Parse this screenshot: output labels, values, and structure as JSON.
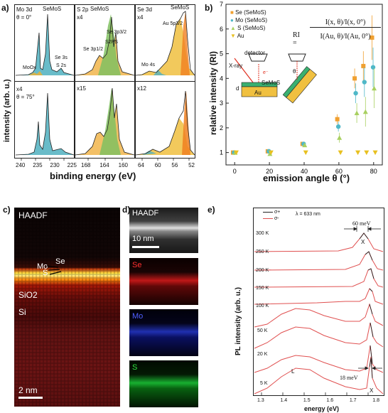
{
  "panels": {
    "a": {
      "label": "a)",
      "ylabel": "intensity (arb. u.)",
      "xlabel": "binding energy (eV)",
      "top_left": [
        "Mo 3d",
        "θ = 0°"
      ],
      "top_mid": [
        "S 2p",
        "x4"
      ],
      "top_right": [
        "Se 3d",
        "x4"
      ],
      "bottom_left": [
        "x4",
        "θ = 75°"
      ],
      "bottom_mid": "x15",
      "bottom_right": "x12",
      "annotations": {
        "sem1": "SeMoS",
        "sem2": "SeMoS",
        "sem3": "SeMoS",
        "moox": "MoOx",
        "se3s": "Se 3s",
        "s2s": "S 2s",
        "se3p32": "Se 3p3/2",
        "s2ps": "S2PS",
        "se3p12": "Se 3p1/2",
        "au5p": "Au 5p3/2",
        "mo4s": "Mo 4s"
      },
      "xticks1": [
        "240",
        "235",
        "230",
        "225"
      ],
      "xticks2": [
        "168",
        "164",
        "160"
      ],
      "xticks3": [
        "64",
        "60",
        "56",
        "52"
      ]
    },
    "b": {
      "label": "b)",
      "ylabel": "relative intensity (RI)",
      "xlabel": "emission angle θ (°)",
      "legend": [
        "Se (SeMoS)",
        "Mo (SeMoS)",
        "S (SeMoS)",
        "Au"
      ],
      "eq_lhs": "RI =",
      "eq_top_num": "I(x, θ)",
      "eq_top_den": "I(x, 0°)",
      "eq_bot_num": "I(Au, θ)",
      "eq_bot_den": "I(Au, 0°)",
      "inset": {
        "detector": "detector",
        "xray": "X-ray",
        "e": "e⁻",
        "d": "d",
        "semos": "SeMoS",
        "au": "Au",
        "theta": "θ"
      }
    },
    "c": {
      "label": "c)",
      "haadf": "HAADF",
      "se": "Se",
      "mo": "Mo",
      "s": "S",
      "sio2": "SiO2",
      "si": "Si",
      "scale": "2 nm"
    },
    "d": {
      "label": "d)",
      "haadf": "HAADF",
      "scale": "10 nm",
      "se": "Se",
      "mo": "Mo",
      "s": "S"
    },
    "e": {
      "label": "e)",
      "legend": [
        "σ+",
        "σ-"
      ],
      "wavelength": "λ = 633 nm",
      "ylabel": "PL intensity (arb. u.)",
      "xlabel": "energy (eV)",
      "temps": [
        "300 K",
        "250 K",
        "200 K",
        "150 K",
        "100 K",
        "50 K",
        "20 K",
        "5 K"
      ],
      "mev60": "60 meV",
      "mev18": "18 meV",
      "X_top": "X",
      "X_bot": "X",
      "L": "L",
      "xticks": [
        "1.3",
        "1.4",
        "1.5",
        "1.6",
        "1.7",
        "1.8"
      ]
    }
  },
  "chart_data": [
    {
      "type": "scatter",
      "title": "",
      "xlabel": "emission angle θ (°)",
      "ylabel": "relative intensity (RI)",
      "xlim": [
        -5,
        85
      ],
      "ylim": [
        0.5,
        7
      ],
      "xticks": [
        0,
        20,
        40,
        60,
        80
      ],
      "yticks": [
        1,
        2,
        3,
        4,
        5,
        6,
        7
      ],
      "legend_position": "top-left",
      "series": [
        {
          "name": "Se (SeMoS)",
          "color": "#f0a030",
          "marker": "square",
          "x": [
            0,
            20,
            40,
            60,
            70,
            75,
            80
          ],
          "y": [
            1.0,
            1.05,
            1.35,
            2.35,
            4.0,
            4.5,
            5.65
          ],
          "err": [
            0.03,
            0.05,
            0.08,
            0.2,
            0.4,
            0.6,
            0.9
          ]
        },
        {
          "name": "Mo (SeMoS)",
          "color": "#4fb8c8",
          "marker": "circle",
          "x": [
            0,
            20,
            40,
            60,
            70,
            75,
            80
          ],
          "y": [
            1.0,
            1.05,
            1.35,
            2.05,
            3.4,
            3.85,
            4.45
          ],
          "err": [
            0.03,
            0.05,
            0.08,
            0.2,
            0.4,
            0.6,
            0.8
          ]
        },
        {
          "name": "S (SeMoS)",
          "color": "#a8d060",
          "marker": "triangle-up",
          "x": [
            0,
            20,
            40,
            60,
            70,
            75,
            80
          ],
          "y": [
            1.0,
            0.95,
            1.3,
            1.6,
            2.6,
            2.65,
            3.6
          ],
          "err": [
            0.03,
            0.05,
            0.08,
            0.2,
            0.4,
            0.6,
            0.8
          ]
        },
        {
          "name": "Au",
          "color": "#e8c020",
          "marker": "triangle-down",
          "x": [
            0,
            20,
            40,
            60,
            70,
            75,
            80
          ],
          "y": [
            1.0,
            1.0,
            1.0,
            1.0,
            1.0,
            1.0,
            1.0
          ],
          "err": [
            0,
            0,
            0,
            0,
            0,
            0,
            0
          ]
        }
      ]
    }
  ]
}
